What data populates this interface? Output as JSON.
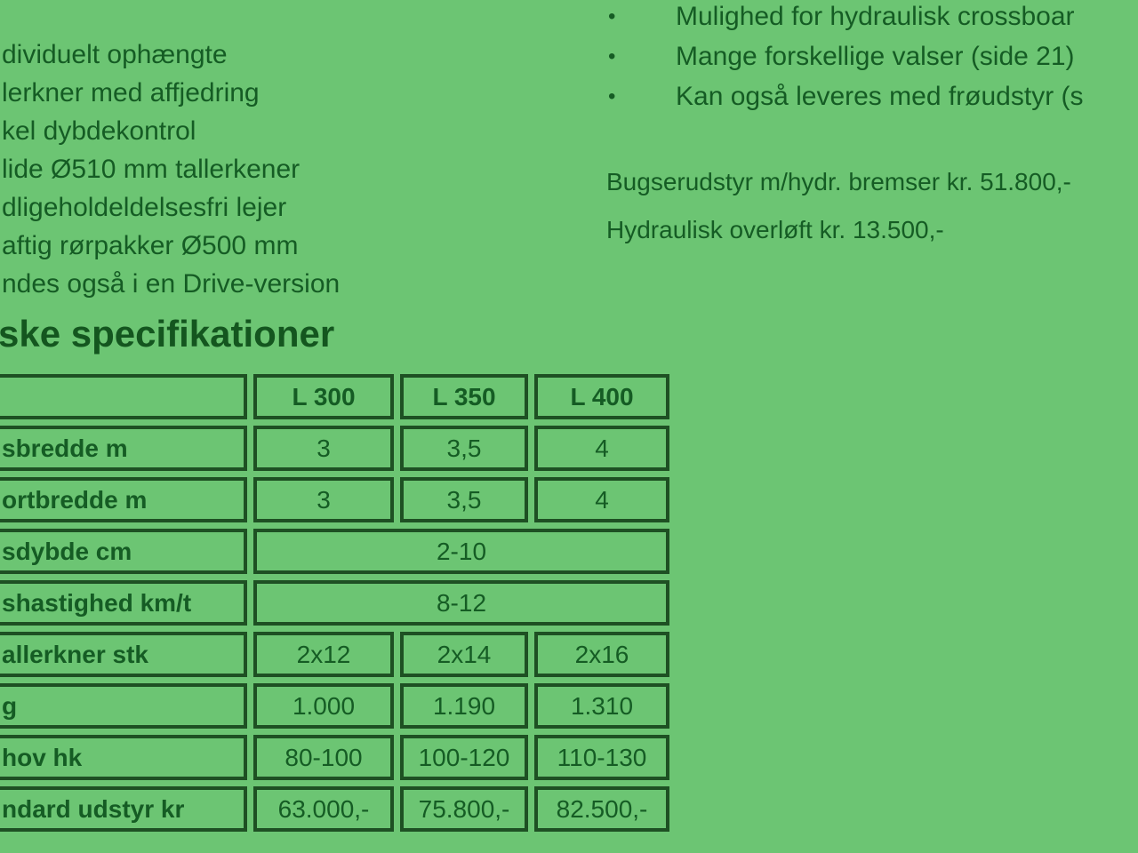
{
  "page": {
    "background_color": "#6cc573",
    "text_color": "#155c24",
    "border_color": "#1e5023"
  },
  "left_features": {
    "items": [
      "dividuelt ophængte",
      "lerkner med affjedring",
      "kel dybdekontrol",
      "lide Ø510 mm tallerkener",
      "dligeholdeldelsesfri lejer",
      "aftig rørpakker Ø500 mm",
      "ndes også i en Drive-version"
    ]
  },
  "right_features": {
    "bullet": "•",
    "items": [
      "Mulighed for hydraulisk crossboar",
      "Mange forskellige valser (side 21)",
      "Kan også leveres med frøudstyr (s"
    ]
  },
  "pricing": {
    "lines": [
      "Bugserudstyr m/hydr. bremser kr. 51.800,-",
      "Hydraulisk overløft kr. 13.500,-"
    ]
  },
  "specs": {
    "heading": "ske specifikationer",
    "columns": [
      "L 300",
      "L 350",
      "L 400"
    ],
    "rows": [
      {
        "label": "sbredde m",
        "values": [
          "3",
          "3,5",
          "4"
        ]
      },
      {
        "label": "ortbredde m",
        "values": [
          "3",
          "3,5",
          "4"
        ]
      },
      {
        "label": "sdybde cm",
        "values": [
          "2-10"
        ],
        "merged": true
      },
      {
        "label": "shastighed km/t",
        "values": [
          "8-12"
        ],
        "merged": true
      },
      {
        "label": "allerkner stk",
        "values": [
          "2x12",
          "2x14",
          "2x16"
        ]
      },
      {
        "label": "g",
        "values": [
          "1.000",
          "1.190",
          "1.310"
        ]
      },
      {
        "label": "hov hk",
        "values": [
          "80-100",
          "100-120",
          "110-130"
        ]
      },
      {
        "label": "ndard udstyr kr",
        "values": [
          "63.000,-",
          "75.800,-",
          "82.500,-"
        ]
      }
    ]
  }
}
